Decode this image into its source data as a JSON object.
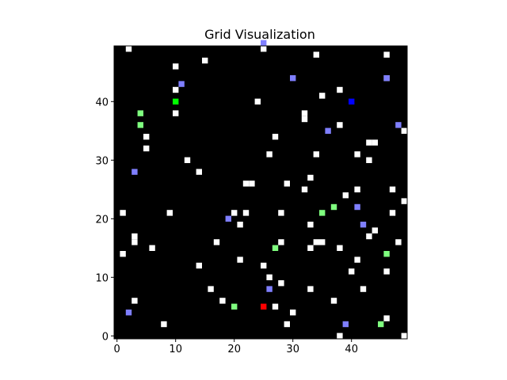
{
  "chart_data": {
    "type": "heatmap",
    "title": "Grid Visualization",
    "xlabel": "",
    "ylabel": "",
    "grid": false,
    "grid_size": [
      50,
      50
    ],
    "xlim": [
      -0.5,
      49.5
    ],
    "ylim": [
      -0.5,
      49.5
    ],
    "x_ticks": [
      0,
      10,
      20,
      30,
      40
    ],
    "y_ticks": [
      0,
      10,
      20,
      30,
      40
    ],
    "colors": {
      "background": "#000000",
      "white": "#ffffff",
      "light_blue": "#7f7fff",
      "light_green": "#7fff7f",
      "green": "#00ff00",
      "blue": "#0000ff",
      "red": "#ff0000"
    },
    "cells": {
      "white": [
        [
          2,
          49
        ],
        [
          25,
          49
        ],
        [
          34,
          48
        ],
        [
          46,
          48
        ],
        [
          15,
          47
        ],
        [
          10,
          46
        ],
        [
          46,
          44
        ],
        [
          10,
          42
        ],
        [
          38,
          42
        ],
        [
          35,
          41
        ],
        [
          24,
          40
        ],
        [
          32,
          38
        ],
        [
          10,
          38
        ],
        [
          32,
          37
        ],
        [
          38,
          36
        ],
        [
          27,
          34
        ],
        [
          5,
          34
        ],
        [
          49,
          35
        ],
        [
          43,
          33
        ],
        [
          44,
          33
        ],
        [
          5,
          32
        ],
        [
          26,
          31
        ],
        [
          34,
          31
        ],
        [
          41,
          31
        ],
        [
          12,
          30
        ],
        [
          43,
          30
        ],
        [
          14,
          28
        ],
        [
          33,
          27
        ],
        [
          22,
          26
        ],
        [
          23,
          26
        ],
        [
          29,
          26
        ],
        [
          32,
          25
        ],
        [
          41,
          25
        ],
        [
          47,
          25
        ],
        [
          39,
          24
        ],
        [
          49,
          23
        ],
        [
          1,
          21
        ],
        [
          9,
          21
        ],
        [
          20,
          21
        ],
        [
          22,
          21
        ],
        [
          28,
          21
        ],
        [
          47,
          21
        ],
        [
          21,
          19
        ],
        [
          33,
          19
        ],
        [
          44,
          18
        ],
        [
          3,
          17
        ],
        [
          43,
          17
        ],
        [
          3,
          16
        ],
        [
          17,
          16
        ],
        [
          28,
          16
        ],
        [
          34,
          16
        ],
        [
          35,
          16
        ],
        [
          48,
          16
        ],
        [
          6,
          15
        ],
        [
          33,
          15
        ],
        [
          38,
          15
        ],
        [
          1,
          14
        ],
        [
          21,
          13
        ],
        [
          41,
          13
        ],
        [
          14,
          12
        ],
        [
          25,
          12
        ],
        [
          40,
          11
        ],
        [
          46,
          11
        ],
        [
          26,
          10
        ],
        [
          28,
          9
        ],
        [
          16,
          8
        ],
        [
          33,
          8
        ],
        [
          42,
          8
        ],
        [
          3,
          6
        ],
        [
          18,
          6
        ],
        [
          37,
          6
        ],
        [
          27,
          5
        ],
        [
          30,
          4
        ],
        [
          46,
          3
        ],
        [
          8,
          2
        ],
        [
          29,
          2
        ],
        [
          38,
          0
        ],
        [
          49,
          0
        ]
      ],
      "light_blue": [
        [
          25,
          50
        ],
        [
          46,
          44
        ],
        [
          11,
          43
        ],
        [
          30,
          44
        ],
        [
          48,
          36
        ],
        [
          36,
          35
        ],
        [
          3,
          28
        ],
        [
          19,
          20
        ],
        [
          41,
          22
        ],
        [
          42,
          19
        ],
        [
          26,
          8
        ],
        [
          2,
          4
        ],
        [
          39,
          2
        ]
      ],
      "light_green": [
        [
          4,
          38
        ],
        [
          4,
          36
        ],
        [
          37,
          22
        ],
        [
          35,
          21
        ],
        [
          27,
          15
        ],
        [
          46,
          14
        ],
        [
          20,
          5
        ],
        [
          45,
          2
        ]
      ],
      "green": [
        [
          10,
          40
        ]
      ],
      "blue": [
        [
          40,
          40
        ]
      ],
      "red": [
        [
          25,
          5
        ]
      ]
    }
  }
}
